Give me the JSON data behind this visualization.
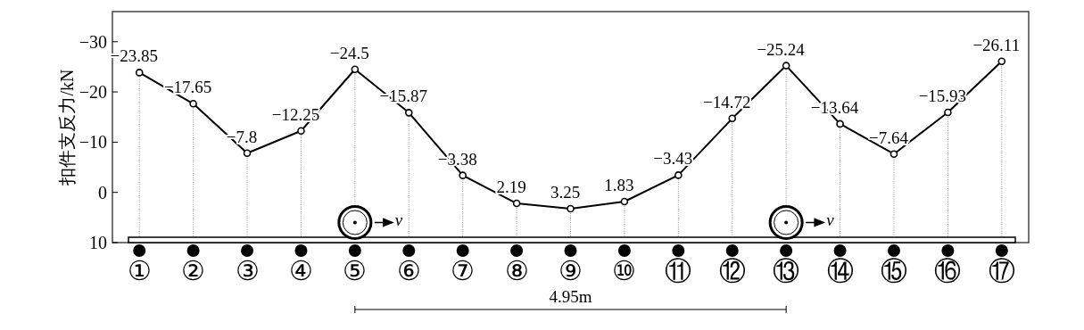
{
  "chart_data": {
    "type": "line",
    "ylabel": "扣件支反力/kN",
    "categories": [
      "①",
      "②",
      "③",
      "④",
      "⑤",
      "⑥",
      "⑦",
      "⑧",
      "⑨",
      "⑩",
      "⑪",
      "⑫",
      "⑬",
      "⑭",
      "⑮",
      "⑯",
      "⑰"
    ],
    "values": [
      -23.85,
      -17.65,
      -7.8,
      -12.25,
      -24.5,
      -15.87,
      -3.38,
      2.19,
      3.25,
      1.83,
      -3.43,
      -14.72,
      -25.24,
      -13.64,
      -7.64,
      -15.93,
      -26.11
    ],
    "color": "#000000",
    "marker": "circle",
    "line_style": "solid",
    "data_labels": true,
    "grid": "x",
    "ylim": [
      10,
      -36
    ],
    "yticks": [
      {
        "value": -30,
        "label": "−30"
      },
      {
        "value": -20,
        "label": "−20"
      },
      {
        "value": -10,
        "label": "−10"
      },
      0,
      10
    ],
    "annotations": [
      {
        "text": "v",
        "x": "⑤",
        "y": 6
      },
      {
        "text": "v",
        "x": "⑬",
        "y": 6
      },
      "4.95m"
    ]
  }
}
